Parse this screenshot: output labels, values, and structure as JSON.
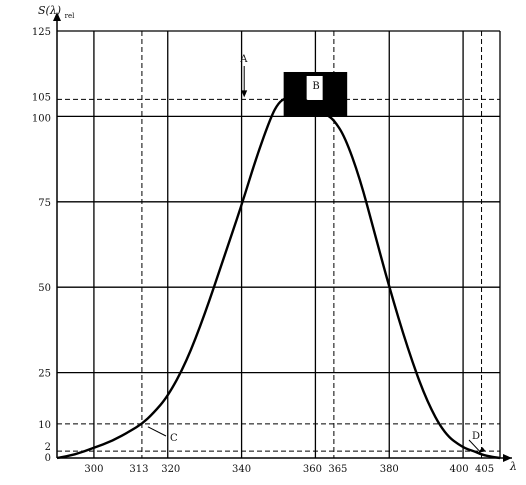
{
  "chart_data": {
    "type": "line",
    "ylabel": "S(λ)rel",
    "xlabel": "λ",
    "xlim": [
      290,
      410
    ],
    "ylim": [
      0,
      125
    ],
    "grid": true,
    "x_ticks": [
      300,
      313,
      320,
      340,
      360,
      365,
      380,
      400,
      405
    ],
    "y_ticks": [
      0,
      2,
      10,
      25,
      50,
      75,
      100,
      105,
      125
    ],
    "x_tick_labels": [
      "300",
      "313",
      "320",
      "340",
      "360",
      "365",
      "380",
      "400",
      "405"
    ],
    "y_tick_labels": [
      "0",
      "2",
      "10",
      "25",
      "50",
      "75",
      "100",
      "105",
      "125"
    ],
    "x_solid_gridlines": [
      300,
      320,
      340,
      360,
      380,
      400
    ],
    "x_dashed_gridlines": [
      313,
      365,
      405
    ],
    "y_solid_gridlines": [
      25,
      50,
      75,
      100,
      125
    ],
    "y_dashed_gridlines": [
      2,
      10,
      105
    ],
    "series": [
      {
        "x": [
          290,
          295,
          300,
          305,
          310,
          313,
          316,
          320,
          325,
          330,
          335,
          340,
          344,
          348,
          350,
          352,
          355,
          357,
          360,
          363,
          365,
          368,
          372,
          376,
          380,
          385,
          390,
          395,
          400,
          403,
          405,
          408,
          410
        ],
        "y": [
          0,
          1,
          3,
          5,
          8,
          10,
          13,
          18,
          28,
          42,
          58,
          74,
          88,
          100,
          104,
          105.5,
          106,
          105,
          103,
          100.5,
          99,
          94,
          82,
          66,
          50,
          32,
          17,
          7,
          3,
          2,
          1,
          0.3,
          0
        ]
      }
    ],
    "annotations": [
      {
        "label": "A",
        "x": 338,
        "y": 105,
        "note": "arrow down to 105 line"
      },
      {
        "label": "B",
        "x": 360,
        "y": 110,
        "note": "black bar straddling 105 level"
      },
      {
        "label": "C",
        "x": 313,
        "y": 10
      },
      {
        "label": "D",
        "x": 405,
        "y": 2
      }
    ],
    "band": {
      "x_range": [
        356,
        364
      ],
      "y_range": [
        101,
        113
      ],
      "color": "#000000"
    }
  }
}
